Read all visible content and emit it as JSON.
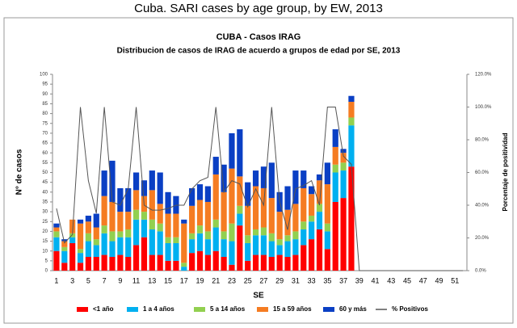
{
  "chart_data": {
    "type": "bar",
    "page_title": "Cuba. SARI cases by age group, by EW, 2013",
    "title": "CUBA - Casos IRAG",
    "subtitle": "Distribucion de casos de IRAG de acuerdo a grupos de edad por SE, 2013",
    "x_label": "SE",
    "y_label": "N° de casos",
    "y2_label": "Porcentaje de positividad",
    "categories": [
      "1",
      null,
      "3",
      null,
      "5",
      null,
      "7",
      null,
      "9",
      null,
      "11",
      null,
      "13",
      null,
      "15",
      null,
      "17",
      null,
      "19",
      null,
      "21",
      null,
      "23",
      null,
      "25",
      null,
      "27",
      null,
      "29",
      null,
      "31",
      null,
      "33",
      null,
      "35",
      null,
      "37",
      null,
      "39",
      null,
      "41",
      null,
      "43",
      null,
      "45",
      null,
      "47",
      null,
      "49",
      null,
      "51",
      null
    ],
    "ylim": [
      0,
      100
    ],
    "yticks": [
      0,
      5,
      10,
      15,
      20,
      25,
      30,
      35,
      40,
      45,
      50,
      55,
      60,
      65,
      70,
      75,
      80,
      85,
      90,
      95,
      100
    ],
    "y2lim": [
      0,
      120
    ],
    "y2ticks": [
      {
        "value": 0,
        "label": "0.0%"
      },
      {
        "value": 20,
        "label": "20.0%"
      },
      {
        "value": 40,
        "label": "40.0%"
      },
      {
        "value": 60,
        "label": "60.0%"
      },
      {
        "value": 80,
        "label": "80.0%"
      },
      {
        "value": 100,
        "label": "100.0%"
      },
      {
        "value": 120,
        "label": "120.0%"
      }
    ],
    "series": [
      {
        "name": "<1 año",
        "color": "#ff0000",
        "values": [
          10,
          4,
          14,
          4,
          7,
          7,
          8,
          7,
          8,
          7,
          13,
          17,
          8,
          8,
          5,
          5,
          0,
          9,
          10,
          8,
          10,
          7,
          3,
          23,
          5,
          8,
          8,
          7,
          8,
          7,
          8,
          13,
          16,
          21,
          11,
          35,
          37,
          53,
          null,
          null,
          null,
          null,
          null,
          null,
          null,
          null,
          null,
          null,
          null,
          null,
          null,
          null
        ]
      },
      {
        "name": "1 a 4 años",
        "color": "#00b0f0",
        "values": [
          7,
          6,
          3,
          5,
          8,
          6,
          11,
          8,
          9,
          10,
          13,
          9,
          13,
          12,
          9,
          9,
          2,
          7,
          9,
          8,
          12,
          9,
          12,
          6,
          9,
          10,
          10,
          8,
          5,
          8,
          8,
          8,
          9,
          9,
          9,
          15,
          14,
          21,
          null,
          null,
          null,
          null,
          null,
          null,
          null,
          null,
          null,
          null,
          null,
          null,
          null,
          null
        ]
      },
      {
        "name": "5 a 14 años",
        "color": "#92d050",
        "values": [
          3,
          2,
          2,
          2,
          4,
          3,
          4,
          5,
          3,
          4,
          5,
          4,
          5,
          4,
          3,
          3,
          2,
          3,
          4,
          4,
          4,
          4,
          9,
          4,
          4,
          3,
          4,
          4,
          3,
          3,
          4,
          4,
          3,
          4,
          4,
          4,
          4,
          4,
          null,
          null,
          null,
          null,
          null,
          null,
          null,
          null,
          null,
          null,
          null,
          null,
          null,
          null
        ]
      },
      {
        "name": "15 a 59 años",
        "color": "#f57c22",
        "values": [
          2,
          3,
          7,
          13,
          6,
          6,
          15,
          15,
          10,
          9,
          10,
          8,
          15,
          10,
          12,
          12,
          20,
          14,
          13,
          15,
          23,
          20,
          28,
          15,
          15,
          22,
          20,
          18,
          14,
          13,
          14,
          17,
          11,
          12,
          20,
          9,
          5,
          8,
          null,
          null,
          null,
          null,
          null,
          null,
          null,
          null,
          null,
          null,
          null,
          null,
          null,
          null
        ]
      },
      {
        "name": "60 y más",
        "color": "#0a3fc4",
        "values": [
          2,
          1,
          0,
          2,
          3,
          7,
          13,
          21,
          12,
          12,
          9,
          8,
          10,
          16,
          11,
          9,
          2,
          9,
          8,
          8,
          9,
          14,
          18,
          24,
          12,
          8,
          11,
          18,
          10,
          12,
          17,
          9,
          4,
          3,
          11,
          9,
          2,
          3,
          null,
          null,
          null,
          null,
          null,
          null,
          null,
          null,
          null,
          null,
          null,
          null,
          null,
          null
        ]
      },
      {
        "name": "% Positivos",
        "color": "#555555",
        "type": "line",
        "axis": "y2",
        "values": [
          38,
          17,
          22,
          100,
          55,
          35,
          100,
          42,
          40,
          50,
          100,
          40,
          37,
          37,
          38,
          40,
          40,
          50,
          55,
          57,
          100,
          48,
          55,
          53,
          39,
          50,
          40,
          100,
          42,
          25,
          50,
          52,
          55,
          40,
          100,
          100,
          70,
          65,
          0,
          0,
          0,
          0,
          0,
          0,
          0,
          0,
          0,
          0,
          0,
          0,
          0,
          0
        ]
      }
    ]
  }
}
